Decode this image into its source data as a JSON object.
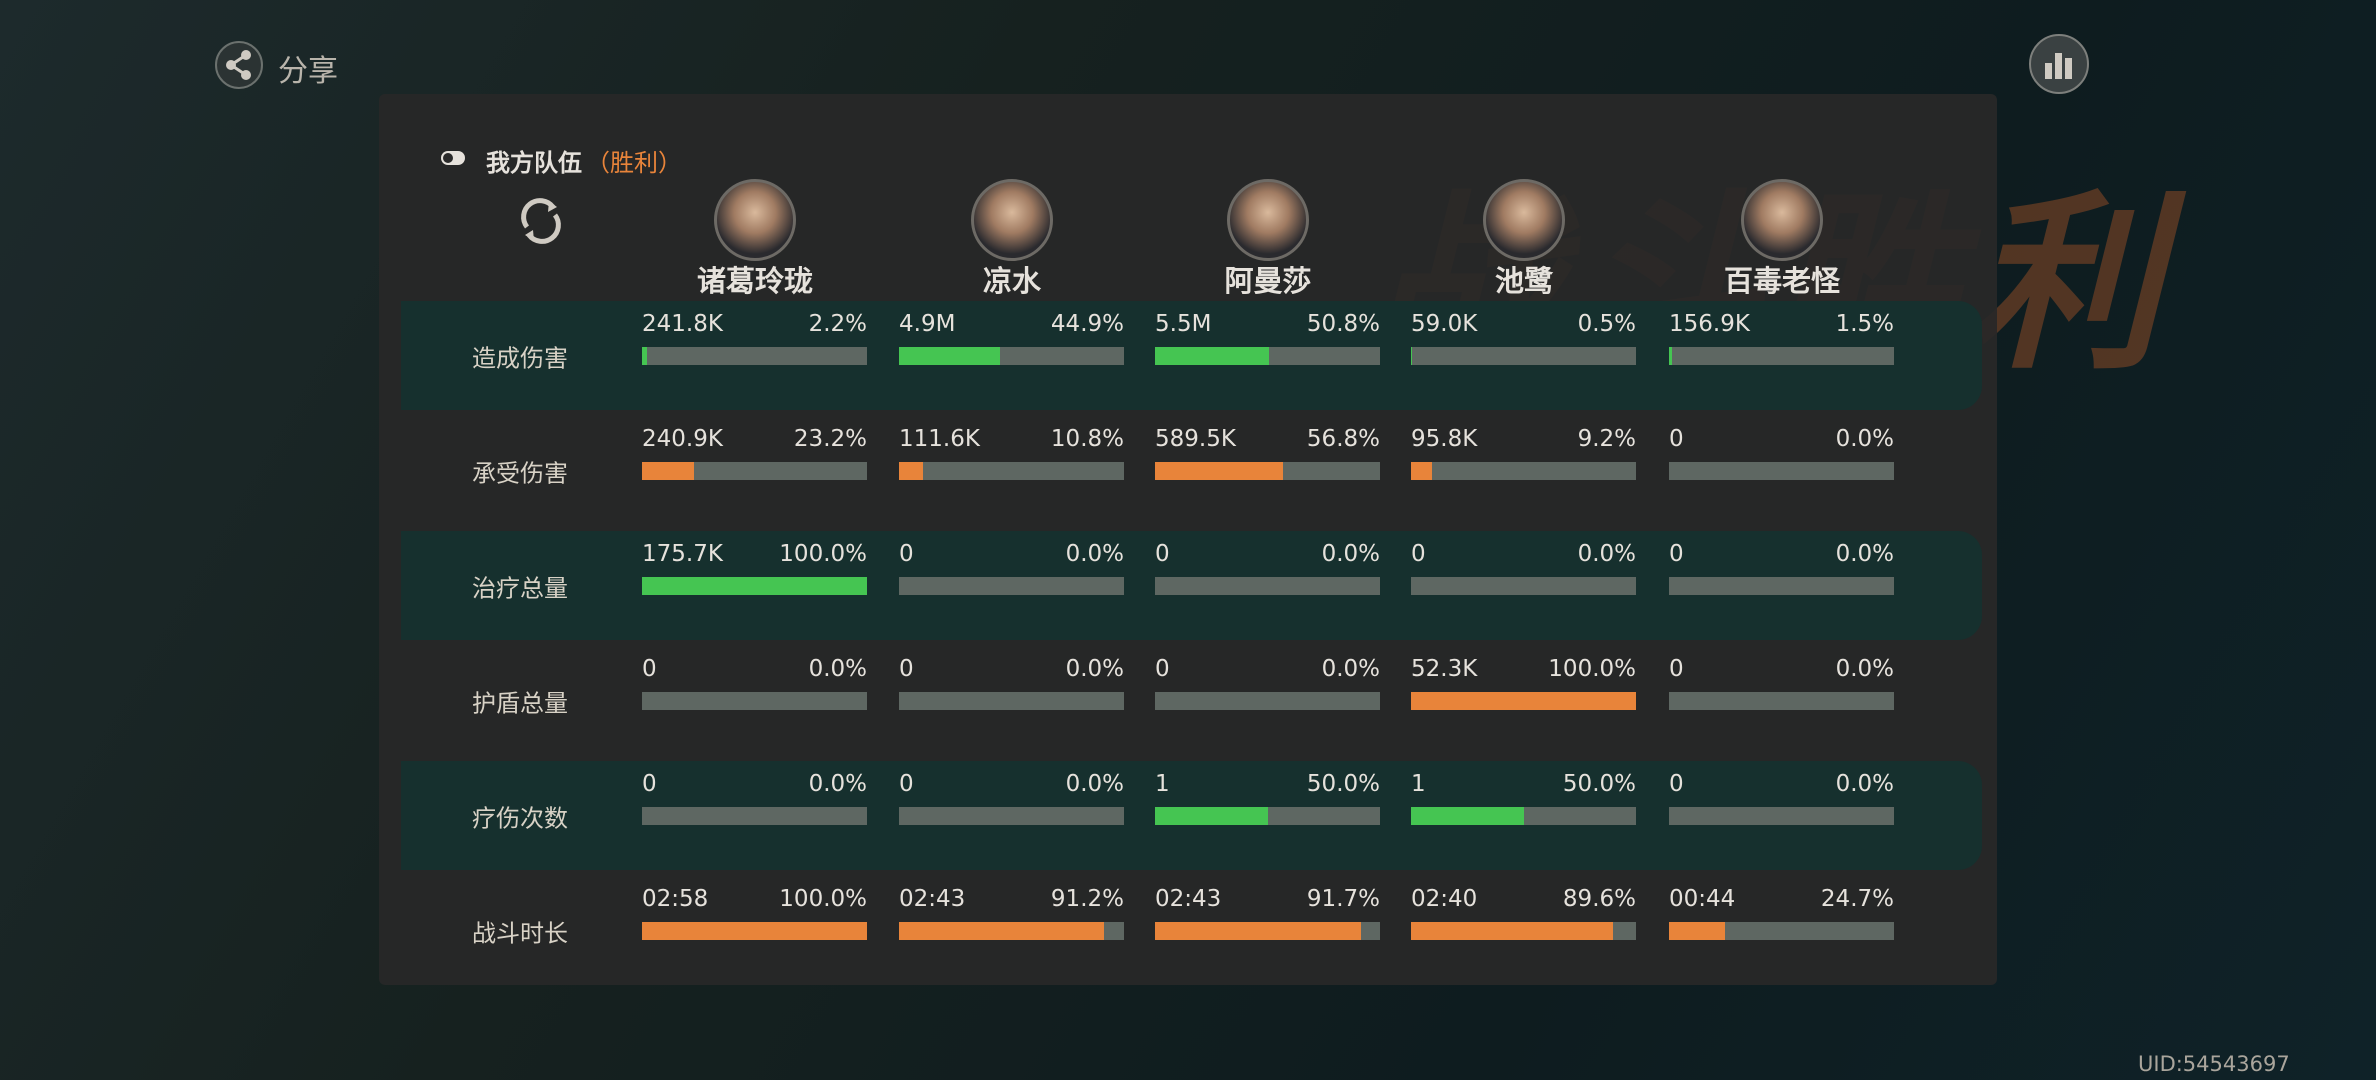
{
  "header": {
    "share": "分享",
    "team": "我方队伍",
    "result": "（胜利）",
    "banner": "战斗胜利",
    "uid": "UID:54543697"
  },
  "characters": [
    "诸葛玲珑",
    "凉水",
    "阿曼莎",
    "池鹭",
    "百毒老怪"
  ],
  "rows": [
    {
      "label": "造成伤害",
      "bar_color": "#45c552",
      "cells": [
        {
          "value": "241.8K",
          "share": {
            "value": 2.2,
            "label": "2.2%"
          }
        },
        {
          "value": "4.9M",
          "share": {
            "value": 44.9,
            "label": "44.9%"
          }
        },
        {
          "value": "5.5M",
          "share": {
            "value": 50.8,
            "label": "50.8%"
          }
        },
        {
          "value": "59.0K",
          "share": {
            "value": 0.5,
            "label": "0.5%"
          }
        },
        {
          "value": "156.9K",
          "share": {
            "value": 1.5,
            "label": "1.5%"
          }
        }
      ]
    },
    {
      "label": "承受伤害",
      "bar_color": "#e8843a",
      "cells": [
        {
          "value": "240.9K",
          "share": {
            "value": 23.2,
            "label": "23.2%"
          }
        },
        {
          "value": "111.6K",
          "share": {
            "value": 10.8,
            "label": "10.8%"
          }
        },
        {
          "value": "589.5K",
          "share": {
            "value": 56.8,
            "label": "56.8%"
          }
        },
        {
          "value": "95.8K",
          "share": {
            "value": 9.2,
            "label": "9.2%"
          }
        },
        {
          "value": "0",
          "share": {
            "value": 0,
            "label": "0.0%"
          }
        }
      ]
    },
    {
      "label": "治疗总量",
      "bar_color": "#45c552",
      "cells": [
        {
          "value": "175.7K",
          "share": {
            "value": 100,
            "label": "100.0%"
          }
        },
        {
          "value": "0",
          "share": {
            "value": 0,
            "label": "0.0%"
          }
        },
        {
          "value": "0",
          "share": {
            "value": 0,
            "label": "0.0%"
          }
        },
        {
          "value": "0",
          "share": {
            "value": 0,
            "label": "0.0%"
          }
        },
        {
          "value": "0",
          "share": {
            "value": 0,
            "label": "0.0%"
          }
        }
      ]
    },
    {
      "label": "护盾总量",
      "bar_color": "#e8843a",
      "cells": [
        {
          "value": "0",
          "share": {
            "value": 0,
            "label": "0.0%"
          }
        },
        {
          "value": "0",
          "share": {
            "value": 0,
            "label": "0.0%"
          }
        },
        {
          "value": "0",
          "share": {
            "value": 0,
            "label": "0.0%"
          }
        },
        {
          "value": "52.3K",
          "share": {
            "value": 100,
            "label": "100.0%"
          }
        },
        {
          "value": "0",
          "share": {
            "value": 0,
            "label": "0.0%"
          }
        }
      ]
    },
    {
      "label": "疗伤次数",
      "bar_color": "#45c552",
      "cells": [
        {
          "value": "0",
          "share": {
            "value": 0,
            "label": "0.0%"
          }
        },
        {
          "value": "0",
          "share": {
            "value": 0,
            "label": "0.0%"
          }
        },
        {
          "value": "1",
          "share": {
            "value": 50,
            "label": "50.0%"
          }
        },
        {
          "value": "1",
          "share": {
            "value": 50,
            "label": "50.0%"
          }
        },
        {
          "value": "0",
          "share": {
            "value": 0,
            "label": "0.0%"
          }
        }
      ]
    },
    {
      "label": "战斗时长",
      "bar_color": "#e8843a",
      "cells": [
        {
          "value": "02:58",
          "share": {
            "value": 100,
            "label": "100.0%"
          }
        },
        {
          "value": "02:43",
          "share": {
            "value": 91.2,
            "label": "91.2%"
          }
        },
        {
          "value": "02:43",
          "share": {
            "value": 91.7,
            "label": "91.7%"
          }
        },
        {
          "value": "02:40",
          "share": {
            "value": 89.6,
            "label": "89.6%"
          }
        },
        {
          "value": "00:44",
          "share": {
            "value": 24.7,
            "label": "24.7%"
          }
        }
      ]
    }
  ]
}
